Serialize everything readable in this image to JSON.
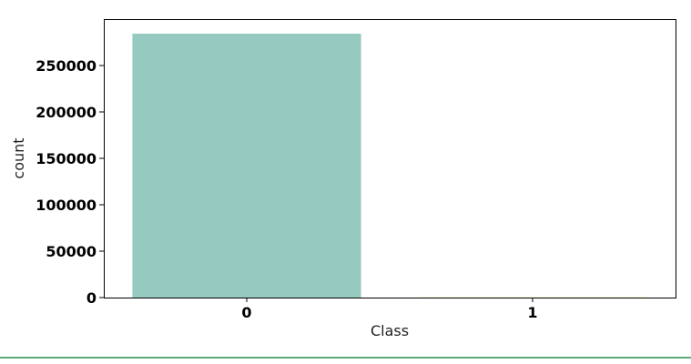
{
  "chart_data": {
    "type": "bar",
    "title": "",
    "xlabel": "Class",
    "ylabel": "count",
    "categories": [
      "0",
      "1"
    ],
    "values": [
      284315,
      492
    ],
    "colors": [
      "#96cac1",
      "#f6f6bc"
    ],
    "ylim": [
      0,
      300000
    ],
    "yticks": [
      0,
      50000,
      100000,
      150000,
      200000,
      250000
    ],
    "ytick_labels": [
      "0",
      "50000",
      "100000",
      "150000",
      "200000",
      "250000"
    ],
    "grid": false,
    "legend": "none"
  }
}
